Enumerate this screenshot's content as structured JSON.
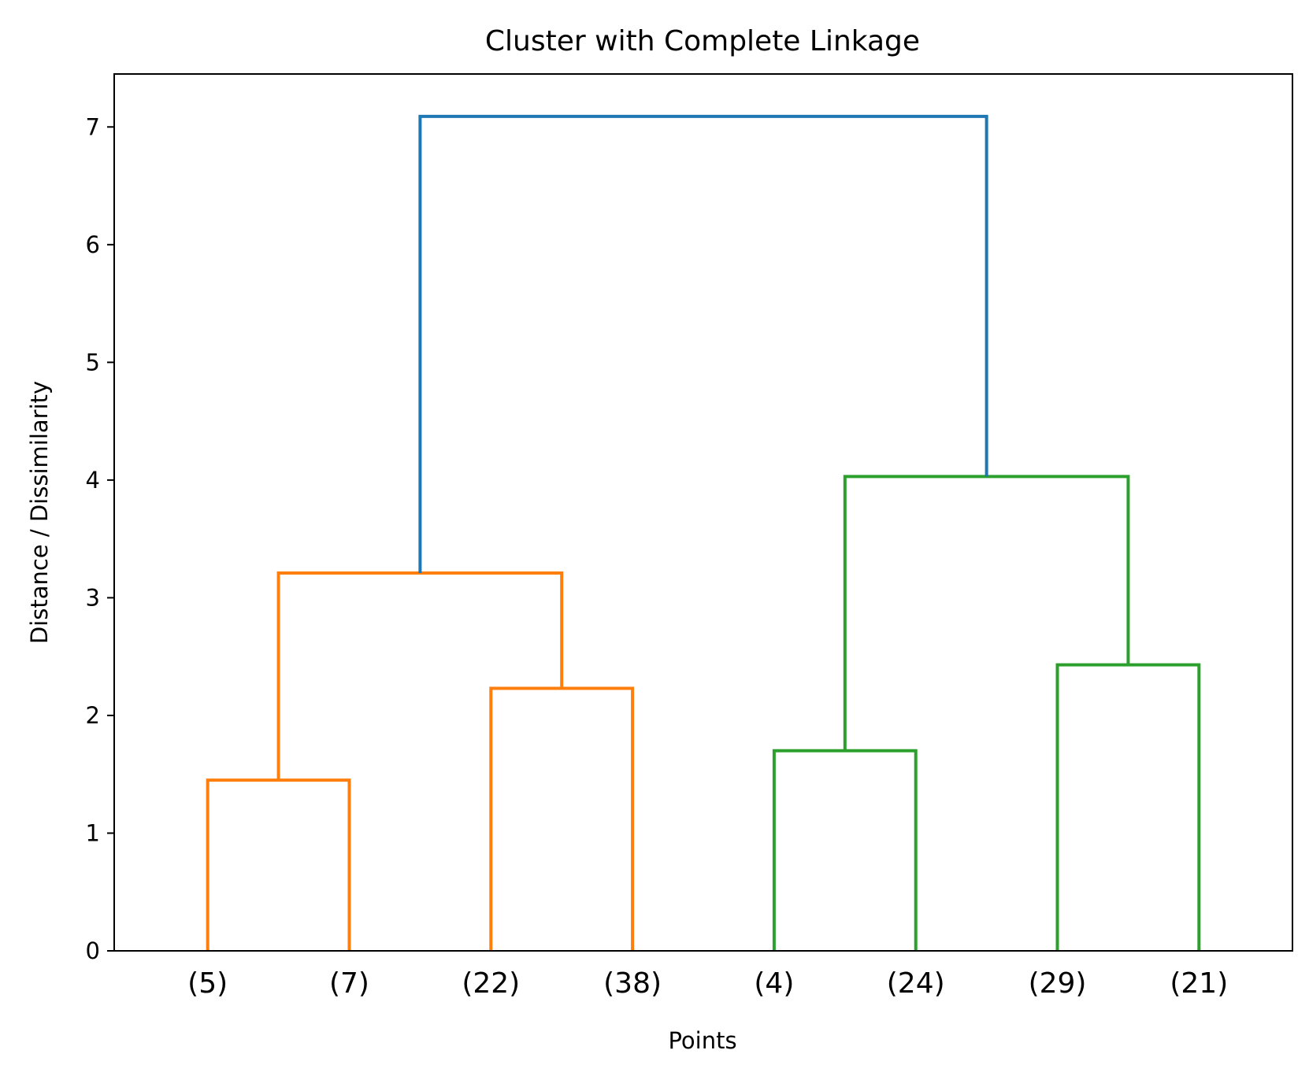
{
  "chart_data": {
    "type": "dendrogram",
    "title": "Cluster with Complete Linkage",
    "xlabel": "Points",
    "ylabel": "Distance / Dissimilarity",
    "ylim": [
      0,
      7.45
    ],
    "yticks": [
      0,
      1,
      2,
      3,
      4,
      5,
      6,
      7
    ],
    "grid": false,
    "leaves": [
      "(5)",
      "(7)",
      "(22)",
      "(38)",
      "(4)",
      "(24)",
      "(29)",
      "(21)"
    ],
    "colors": {
      "orange": "#ff7f0e",
      "green": "#2ca02c",
      "blue": "#1f77b4"
    },
    "merges": [
      {
        "left": "leaf:0",
        "right": "leaf:1",
        "height": 1.45,
        "color": "orange"
      },
      {
        "left": "leaf:2",
        "right": "leaf:3",
        "height": 2.23,
        "color": "orange"
      },
      {
        "left": "merge:0",
        "right": "merge:1",
        "height": 3.21,
        "color": "orange"
      },
      {
        "left": "leaf:4",
        "right": "leaf:5",
        "height": 1.7,
        "color": "green"
      },
      {
        "left": "leaf:6",
        "right": "leaf:7",
        "height": 2.43,
        "color": "green"
      },
      {
        "left": "merge:3",
        "right": "merge:4",
        "height": 4.03,
        "color": "green"
      },
      {
        "left": "merge:2",
        "right": "merge:5",
        "height": 7.09,
        "color": "blue"
      }
    ]
  }
}
